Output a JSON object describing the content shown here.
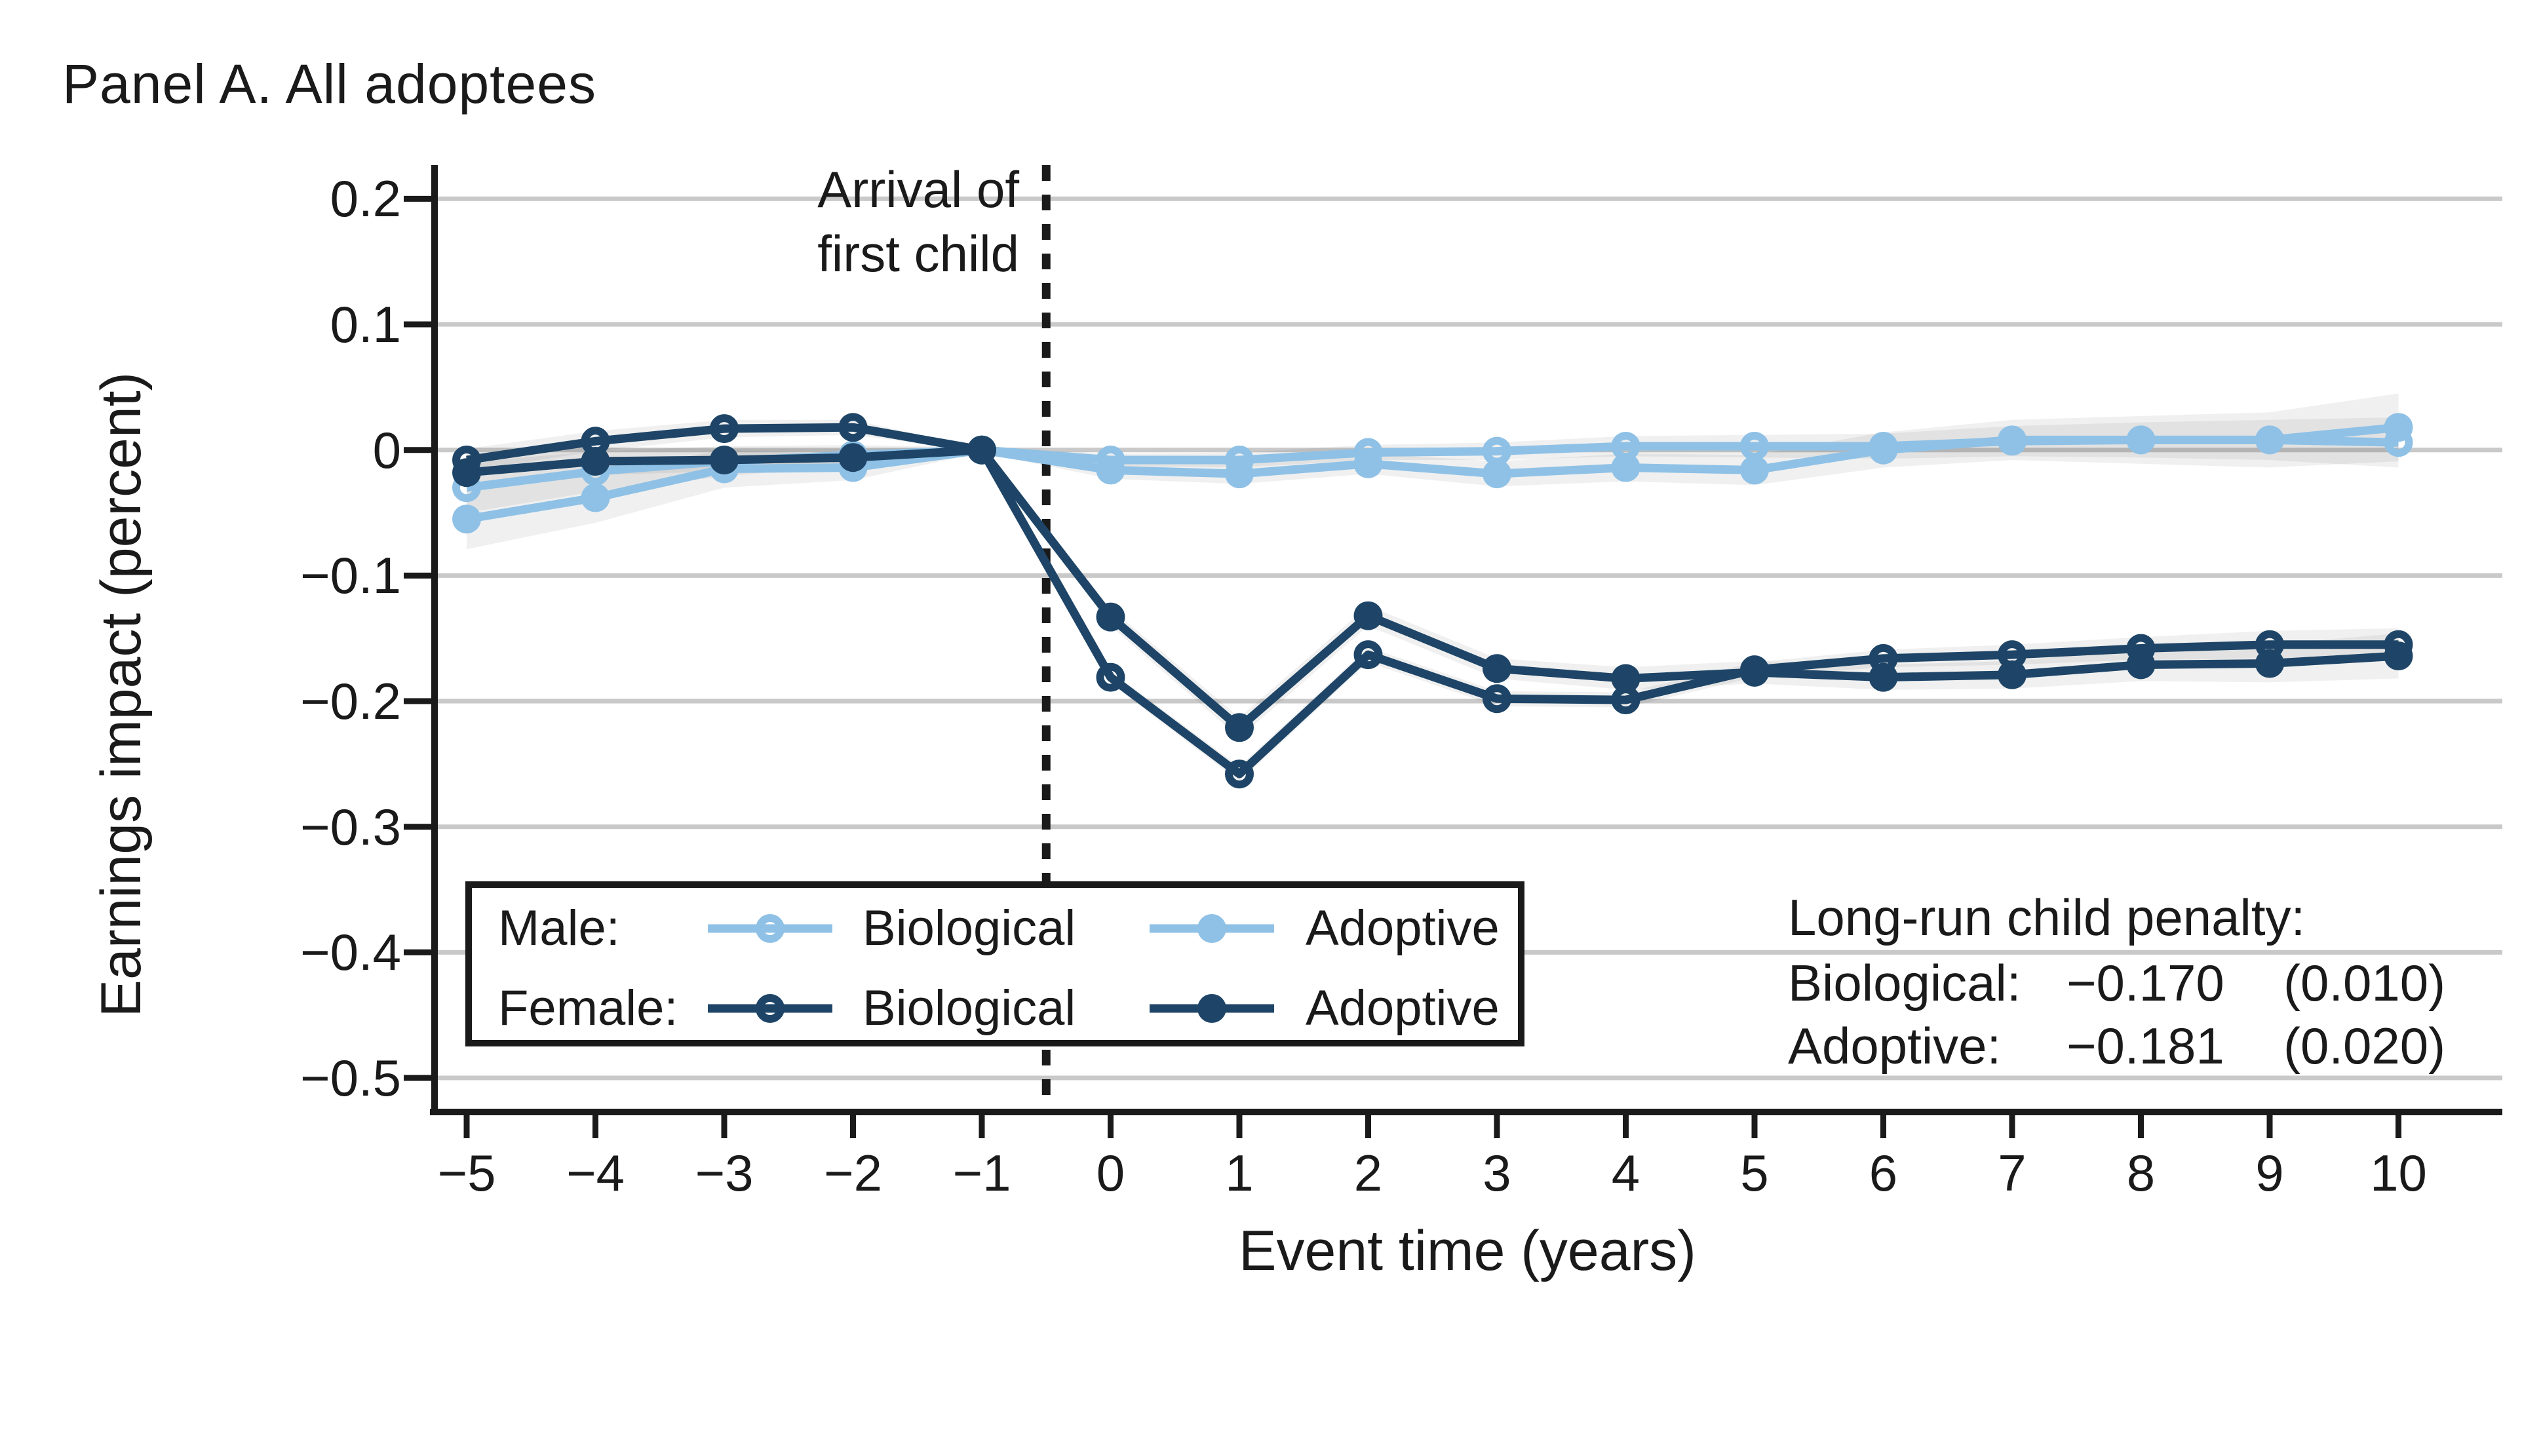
{
  "panel_title": "Panel A. All adoptees",
  "event_note": {
    "line1": "Arrival of",
    "line2": "first child"
  },
  "axes": {
    "y_title": "Earnings impact (percent)",
    "x_title": "Event time (years)",
    "ytick_labels": [
      "0.2",
      "0.1",
      "0",
      "−0.1",
      "−0.2",
      "−0.3",
      "−0.4",
      "−0.5"
    ],
    "xtick_labels": [
      "−5",
      "−4",
      "−3",
      "−2",
      "−1",
      "0",
      "1",
      "2",
      "3",
      "4",
      "5",
      "6",
      "7",
      "8",
      "9",
      "10"
    ]
  },
  "colors": {
    "male": "#8fc1e6",
    "female": "#1e4567",
    "grid": "#c9c9c9",
    "axis": "#1a1a1a",
    "band": "rgba(80,80,80,0.085)"
  },
  "legend": {
    "rows": [
      {
        "group": "Male:",
        "color_key": "male",
        "biological_label": "Biological",
        "adoptive_label": "Adoptive"
      },
      {
        "group": "Female:",
        "color_key": "female",
        "biological_label": "Biological",
        "adoptive_label": "Adoptive"
      }
    ]
  },
  "stats": {
    "title": "Long-run child penalty:",
    "rows": [
      {
        "label": "Biological:",
        "value": "−0.170",
        "se": "(0.010)"
      },
      {
        "label": "Adoptive:",
        "value": "−0.181",
        "se": "(0.020)"
      }
    ]
  },
  "chart_data": {
    "type": "line",
    "title": "Panel A. All adoptees",
    "xlabel": "Event time (years)",
    "ylabel": "Earnings impact (percent)",
    "x": [
      -5,
      -4,
      -3,
      -2,
      -1,
      0,
      1,
      2,
      3,
      4,
      5,
      6,
      7,
      8,
      9,
      10
    ],
    "ylim": [
      -0.5,
      0.2
    ],
    "yticks": [
      0.2,
      0.1,
      0,
      -0.1,
      -0.2,
      -0.3,
      -0.4,
      -0.5
    ],
    "grid": true,
    "event_line_x": -0.5,
    "legend_position": "lower-left",
    "series": [
      {
        "name": "Male: Biological",
        "color_key": "male",
        "marker": "open",
        "values": [
          -0.03,
          -0.017,
          -0.009,
          -0.004,
          0.0,
          -0.008,
          -0.008,
          -0.002,
          -0.001,
          0.003,
          0.003,
          0.003,
          0.007,
          0.008,
          0.008,
          0.006
        ],
        "ci_halfwidth": [
          0.02,
          0.016,
          0.012,
          0.008,
          0.002,
          0.005,
          0.006,
          0.006,
          0.007,
          0.008,
          0.009,
          0.01,
          0.012,
          0.014,
          0.016,
          0.02
        ]
      },
      {
        "name": "Male: Adoptive",
        "color_key": "male",
        "marker": "filled",
        "values": [
          -0.055,
          -0.038,
          -0.015,
          -0.014,
          0.0,
          -0.016,
          -0.019,
          -0.011,
          -0.019,
          -0.014,
          -0.016,
          0.0,
          0.008,
          0.008,
          0.008,
          0.018
        ],
        "ci_halfwidth": [
          0.024,
          0.02,
          0.015,
          0.01,
          0.002,
          0.007,
          0.008,
          0.008,
          0.01,
          0.011,
          0.012,
          0.014,
          0.016,
          0.019,
          0.022,
          0.027
        ]
      },
      {
        "name": "Female: Biological",
        "color_key": "female",
        "marker": "open",
        "values": [
          -0.008,
          0.007,
          0.017,
          0.018,
          0.0,
          -0.181,
          -0.258,
          -0.163,
          -0.198,
          -0.199,
          -0.175,
          -0.166,
          -0.163,
          -0.158,
          -0.155,
          -0.155
        ],
        "ci_halfwidth": [
          0.009,
          0.008,
          0.007,
          0.006,
          0.001,
          0.005,
          0.006,
          0.006,
          0.006,
          0.006,
          0.006,
          0.007,
          0.008,
          0.009,
          0.011,
          0.013
        ]
      },
      {
        "name": "Female: Adoptive",
        "color_key": "female",
        "marker": "filled",
        "values": [
          -0.018,
          -0.009,
          -0.008,
          -0.006,
          0.0,
          -0.133,
          -0.221,
          -0.132,
          -0.174,
          -0.182,
          -0.177,
          -0.181,
          -0.179,
          -0.171,
          -0.17,
          -0.164
        ],
        "ci_halfwidth": [
          0.013,
          0.011,
          0.009,
          0.007,
          0.002,
          0.007,
          0.008,
          0.008,
          0.008,
          0.009,
          0.009,
          0.01,
          0.011,
          0.013,
          0.015,
          0.018
        ]
      }
    ],
    "long_run_child_penalty": {
      "biological": -0.17,
      "biological_se": 0.01,
      "adoptive": -0.181,
      "adoptive_se": 0.02
    }
  }
}
